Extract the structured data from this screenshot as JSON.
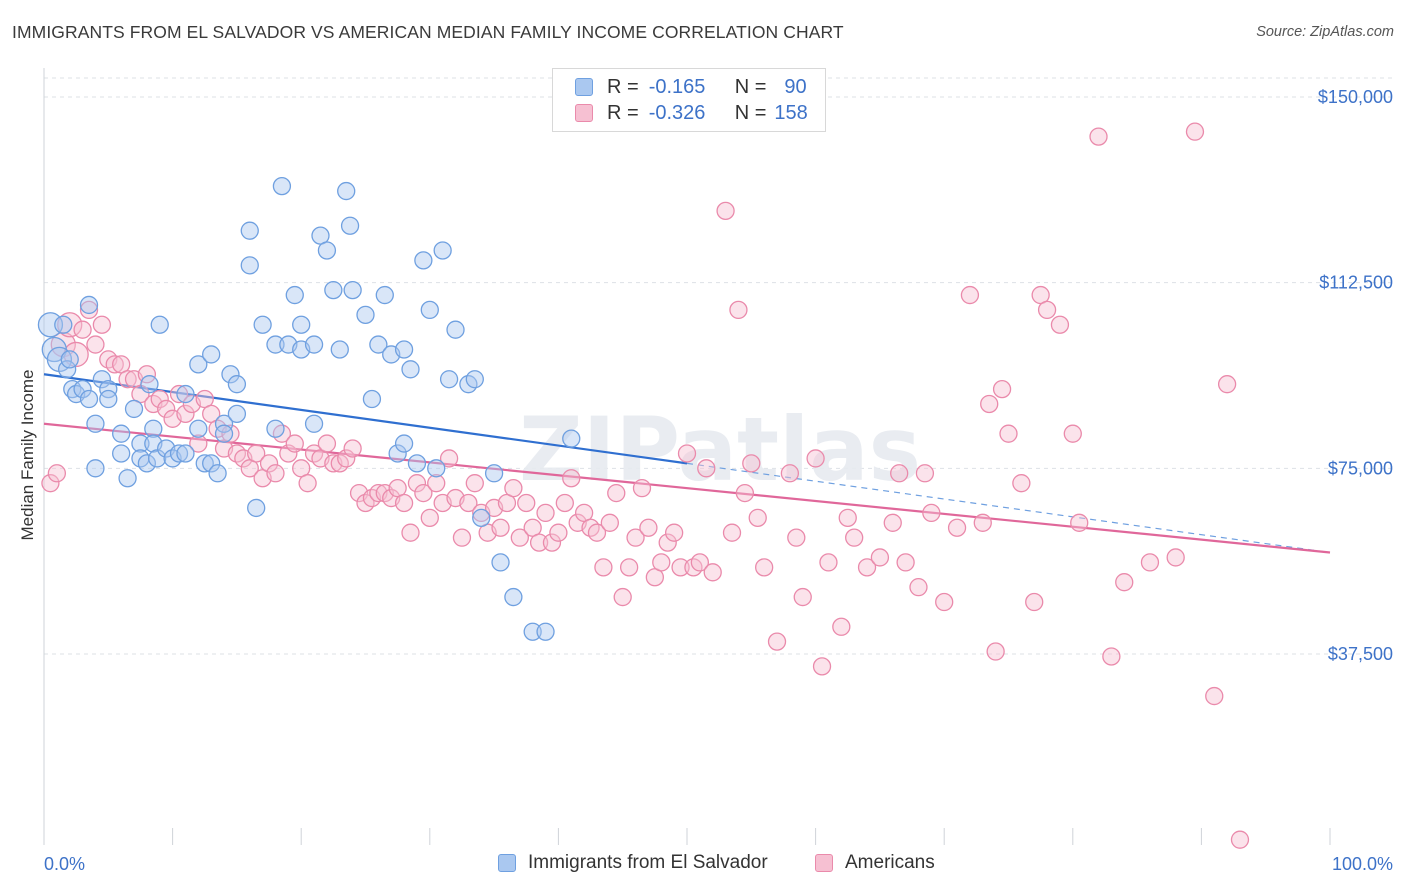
{
  "title": "IMMIGRANTS FROM EL SALVADOR VS AMERICAN MEDIAN FAMILY INCOME CORRELATION CHART",
  "source": "Source: ZipAtlas.com",
  "watermark": "ZIPatlas",
  "legend": {
    "r_label": "R =",
    "n_label": "N =",
    "rows": [
      {
        "r": "-0.165",
        "n": "90",
        "color": "#aac8f0"
      },
      {
        "r": "-0.326",
        "n": "158",
        "color": "#f6c0d2"
      }
    ]
  },
  "chart_data": {
    "type": "scatter",
    "title": "IMMIGRANTS FROM EL SALVADOR VS AMERICAN MEDIAN FAMILY INCOME CORRELATION CHART",
    "xlabel": "",
    "ylabel": "Median Family Income",
    "xlim": [
      0,
      100
    ],
    "ylim": [
      0,
      160000
    ],
    "x_tick_labels": [
      "0.0%",
      "100.0%"
    ],
    "y_ticks": [
      37500,
      75000,
      112500,
      150000
    ],
    "y_tick_labels": [
      "$37,500",
      "$75,000",
      "$112,500",
      "$150,000"
    ],
    "grid": true,
    "legend_position": "top-center",
    "series": [
      {
        "name": "Immigrants from El Salvador",
        "color": "#6fa0e0",
        "fill": "#aac8f0",
        "trend": {
          "x0": 0,
          "y0": 94000,
          "x1": 50,
          "y1": 76000,
          "dashed_to_x": 100,
          "dashed_to_y": 58000
        },
        "points": [
          [
            0.5,
            104000
          ],
          [
            0.8,
            99000
          ],
          [
            1.2,
            97000
          ],
          [
            1.5,
            104000
          ],
          [
            1.8,
            95000
          ],
          [
            2,
            97000
          ],
          [
            2.2,
            91000
          ],
          [
            2.5,
            90000
          ],
          [
            3,
            91000
          ],
          [
            3.5,
            108000
          ],
          [
            3.5,
            89000
          ],
          [
            4,
            84000
          ],
          [
            4,
            75000
          ],
          [
            4.5,
            93000
          ],
          [
            5,
            91000
          ],
          [
            5,
            89000
          ],
          [
            6,
            78000
          ],
          [
            6,
            82000
          ],
          [
            6.5,
            73000
          ],
          [
            7,
            87000
          ],
          [
            7.5,
            80000
          ],
          [
            7.5,
            77000
          ],
          [
            8,
            76000
          ],
          [
            8.2,
            92000
          ],
          [
            8.5,
            83000
          ],
          [
            8.5,
            80000
          ],
          [
            8.8,
            77000
          ],
          [
            9,
            104000
          ],
          [
            9.5,
            79000
          ],
          [
            10,
            77000
          ],
          [
            10.5,
            78000
          ],
          [
            11,
            78000
          ],
          [
            11,
            90000
          ],
          [
            12,
            96000
          ],
          [
            12,
            83000
          ],
          [
            12.5,
            76000
          ],
          [
            13,
            98000
          ],
          [
            13,
            76000
          ],
          [
            13.5,
            74000
          ],
          [
            14,
            84000
          ],
          [
            14,
            82000
          ],
          [
            14.5,
            94000
          ],
          [
            15,
            86000
          ],
          [
            15,
            92000
          ],
          [
            16,
            123000
          ],
          [
            16,
            116000
          ],
          [
            16.5,
            67000
          ],
          [
            17,
            104000
          ],
          [
            18,
            83000
          ],
          [
            18,
            100000
          ],
          [
            18.5,
            132000
          ],
          [
            19,
            100000
          ],
          [
            19.5,
            110000
          ],
          [
            20,
            104000
          ],
          [
            20,
            99000
          ],
          [
            21,
            100000
          ],
          [
            21,
            84000
          ],
          [
            21.5,
            122000
          ],
          [
            22,
            119000
          ],
          [
            22.5,
            111000
          ],
          [
            23,
            99000
          ],
          [
            23.5,
            131000
          ],
          [
            23.8,
            124000
          ],
          [
            24,
            111000
          ],
          [
            25,
            106000
          ],
          [
            25.5,
            89000
          ],
          [
            26,
            100000
          ],
          [
            26.5,
            110000
          ],
          [
            27,
            98000
          ],
          [
            27.5,
            78000
          ],
          [
            28,
            99000
          ],
          [
            28,
            80000
          ],
          [
            28.5,
            95000
          ],
          [
            29,
            76000
          ],
          [
            29.5,
            117000
          ],
          [
            30,
            107000
          ],
          [
            30.5,
            75000
          ],
          [
            31,
            119000
          ],
          [
            31.5,
            93000
          ],
          [
            32,
            103000
          ],
          [
            33,
            92000
          ],
          [
            33.5,
            93000
          ],
          [
            34,
            65000
          ],
          [
            35,
            74000
          ],
          [
            35.5,
            56000
          ],
          [
            36.5,
            49000
          ],
          [
            38,
            42000
          ],
          [
            39,
            42000
          ],
          [
            41,
            81000
          ]
        ]
      },
      {
        "name": "Americans",
        "color": "#ea8aab",
        "fill": "#f6c0d2",
        "trend": {
          "x0": 0,
          "y0": 84000,
          "x1": 100,
          "y1": 58000
        },
        "points": [
          [
            0.5,
            72000
          ],
          [
            1,
            74000
          ],
          [
            1.5,
            100000
          ],
          [
            2,
            104000
          ],
          [
            2.5,
            98000
          ],
          [
            3,
            103000
          ],
          [
            3.5,
            107000
          ],
          [
            4,
            100000
          ],
          [
            4.5,
            104000
          ],
          [
            5,
            97000
          ],
          [
            5.5,
            96000
          ],
          [
            6,
            96000
          ],
          [
            6.5,
            93000
          ],
          [
            7,
            93000
          ],
          [
            7.5,
            90000
          ],
          [
            8,
            94000
          ],
          [
            8.5,
            88000
          ],
          [
            9,
            89000
          ],
          [
            9.5,
            87000
          ],
          [
            10,
            85000
          ],
          [
            10.5,
            90000
          ],
          [
            11,
            86000
          ],
          [
            11.5,
            88000
          ],
          [
            12,
            80000
          ],
          [
            12.5,
            89000
          ],
          [
            13,
            86000
          ],
          [
            13.5,
            83000
          ],
          [
            14,
            79000
          ],
          [
            14.5,
            82000
          ],
          [
            15,
            78000
          ],
          [
            15.5,
            77000
          ],
          [
            16,
            75000
          ],
          [
            16.5,
            78000
          ],
          [
            17,
            73000
          ],
          [
            17.5,
            76000
          ],
          [
            18,
            74000
          ],
          [
            18.5,
            82000
          ],
          [
            19,
            78000
          ],
          [
            19.5,
            80000
          ],
          [
            20,
            75000
          ],
          [
            20.5,
            72000
          ],
          [
            21,
            78000
          ],
          [
            21.5,
            77000
          ],
          [
            22,
            80000
          ],
          [
            22.5,
            76000
          ],
          [
            23,
            76000
          ],
          [
            23.5,
            77000
          ],
          [
            24,
            79000
          ],
          [
            24.5,
            70000
          ],
          [
            25,
            68000
          ],
          [
            25.5,
            69000
          ],
          [
            26,
            70000
          ],
          [
            26.5,
            70000
          ],
          [
            27,
            69000
          ],
          [
            27.5,
            71000
          ],
          [
            28,
            68000
          ],
          [
            28.5,
            62000
          ],
          [
            29,
            72000
          ],
          [
            29.5,
            70000
          ],
          [
            30,
            65000
          ],
          [
            30.5,
            72000
          ],
          [
            31,
            68000
          ],
          [
            31.5,
            77000
          ],
          [
            32,
            69000
          ],
          [
            32.5,
            61000
          ],
          [
            33,
            68000
          ],
          [
            33.5,
            72000
          ],
          [
            34,
            66000
          ],
          [
            34.5,
            62000
          ],
          [
            35,
            67000
          ],
          [
            35.5,
            63000
          ],
          [
            36,
            68000
          ],
          [
            36.5,
            71000
          ],
          [
            37,
            61000
          ],
          [
            37.5,
            68000
          ],
          [
            38,
            63000
          ],
          [
            38.5,
            60000
          ],
          [
            39,
            66000
          ],
          [
            39.5,
            60000
          ],
          [
            40,
            62000
          ],
          [
            40.5,
            68000
          ],
          [
            41,
            73000
          ],
          [
            41.5,
            64000
          ],
          [
            42,
            66000
          ],
          [
            42.5,
            63000
          ],
          [
            43,
            62000
          ],
          [
            43.5,
            55000
          ],
          [
            44,
            64000
          ],
          [
            44.5,
            70000
          ],
          [
            45,
            49000
          ],
          [
            45.5,
            55000
          ],
          [
            46,
            61000
          ],
          [
            46.5,
            71000
          ],
          [
            47,
            63000
          ],
          [
            47.5,
            53000
          ],
          [
            48,
            56000
          ],
          [
            48.5,
            60000
          ],
          [
            49,
            62000
          ],
          [
            49.5,
            55000
          ],
          [
            50,
            78000
          ],
          [
            50.5,
            55000
          ],
          [
            51,
            56000
          ],
          [
            51.5,
            75000
          ],
          [
            52,
            54000
          ],
          [
            53,
            127000
          ],
          [
            53.5,
            62000
          ],
          [
            54,
            107000
          ],
          [
            54.5,
            70000
          ],
          [
            55,
            76000
          ],
          [
            55.5,
            65000
          ],
          [
            56,
            55000
          ],
          [
            57,
            40000
          ],
          [
            58,
            74000
          ],
          [
            58.5,
            61000
          ],
          [
            59,
            49000
          ],
          [
            60,
            77000
          ],
          [
            60.5,
            35000
          ],
          [
            61,
            56000
          ],
          [
            62,
            43000
          ],
          [
            62.5,
            65000
          ],
          [
            63,
            61000
          ],
          [
            64,
            55000
          ],
          [
            65,
            57000
          ],
          [
            66,
            64000
          ],
          [
            66.5,
            74000
          ],
          [
            67,
            56000
          ],
          [
            68,
            51000
          ],
          [
            68.5,
            74000
          ],
          [
            69,
            66000
          ],
          [
            70,
            48000
          ],
          [
            71,
            63000
          ],
          [
            72,
            110000
          ],
          [
            73,
            64000
          ],
          [
            73.5,
            88000
          ],
          [
            74,
            38000
          ],
          [
            74.5,
            91000
          ],
          [
            75,
            82000
          ],
          [
            76,
            72000
          ],
          [
            77,
            48000
          ],
          [
            77.5,
            110000
          ],
          [
            78,
            107000
          ],
          [
            79,
            104000
          ],
          [
            80,
            82000
          ],
          [
            80.5,
            64000
          ],
          [
            82,
            142000
          ],
          [
            83,
            37000
          ],
          [
            84,
            52000
          ],
          [
            86,
            56000
          ],
          [
            88,
            57000
          ],
          [
            89.5,
            143000
          ],
          [
            91,
            29000
          ],
          [
            92,
            92000
          ],
          [
            93,
            0
          ]
        ]
      }
    ]
  },
  "bottom_legend": [
    "Immigrants from El Salvador",
    "Americans"
  ]
}
